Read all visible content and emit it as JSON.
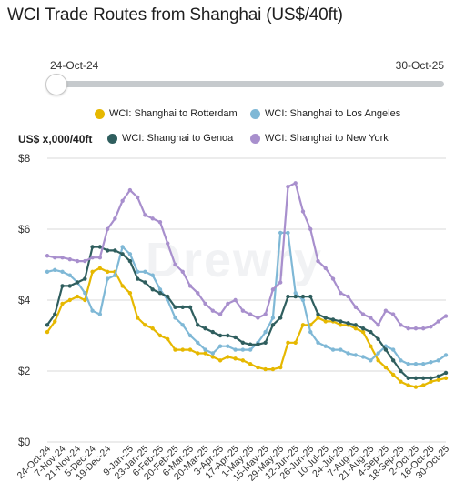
{
  "title": "WCI Trade Routes from Shanghai (US$/40ft)",
  "slider": {
    "start_label": "24-Oct-24",
    "end_label": "30-Oct-25"
  },
  "watermark": "Drewry",
  "chart_data": {
    "type": "line",
    "ylabel": "US$ x,000/40ft",
    "ylim": [
      0,
      8
    ],
    "yticks": [
      0,
      2,
      4,
      6,
      8
    ],
    "ytick_labels": [
      "$0",
      "$2",
      "$4",
      "$6",
      "$8"
    ],
    "grid": true,
    "legend_position": "top",
    "x": [
      "24-Oct-24",
      "31-Oct-24",
      "7-Nov-24",
      "14-Nov-24",
      "21-Nov-24",
      "28-Nov-24",
      "5-Dec-24",
      "12-Dec-24",
      "19-Dec-24",
      "26-Dec-24",
      "2-Jan-25",
      "9-Jan-25",
      "16-Jan-25",
      "23-Jan-25",
      "30-Jan-25",
      "6-Feb-25",
      "13-Feb-25",
      "20-Feb-25",
      "27-Feb-25",
      "6-Mar-25",
      "13-Mar-25",
      "20-Mar-25",
      "27-Mar-25",
      "3-Apr-25",
      "10-Apr-25",
      "17-Apr-25",
      "24-Apr-25",
      "1-May-25",
      "8-May-25",
      "15-May-25",
      "22-May-25",
      "29-May-25",
      "5-Jun-25",
      "12-Jun-25",
      "19-Jun-25",
      "26-Jun-25",
      "3-Jul-25",
      "10-Jul-25",
      "17-Jul-25",
      "24-Jul-25",
      "31-Jul-25",
      "7-Aug-25",
      "14-Aug-25",
      "21-Aug-25",
      "28-Aug-25",
      "4-Sep-25",
      "11-Sep-25",
      "18-Sep-25",
      "25-Sep-25",
      "2-Oct-25",
      "9-Oct-25",
      "16-Oct-25",
      "23-Oct-25",
      "30-Oct-25"
    ],
    "xtick_labels": [
      "24-Oct-24",
      "7-Nov-24",
      "21-Nov-24",
      "5-Dec-24",
      "19-Dec-24",
      "9-Jan-25",
      "23-Jan-25",
      "6-Feb-25",
      "20-Feb-25",
      "6-Mar-25",
      "20-Mar-25",
      "3-Apr-25",
      "17-Apr-25",
      "1-May-25",
      "15-May-25",
      "29-May-25",
      "12-Jun-25",
      "26-Jun-25",
      "10-Jul-25",
      "24-Jul-25",
      "7-Aug-25",
      "21-Aug-25",
      "4-Sep-25",
      "18-Sep-25",
      "2-Oct-25",
      "16-Oct-25",
      "30-Oct-25"
    ],
    "series": [
      {
        "name": "WCI: Shanghai to Rotterdam",
        "color": "#e6b800",
        "values": [
          3.1,
          3.4,
          3.9,
          4.0,
          4.1,
          4.0,
          4.8,
          4.9,
          4.8,
          4.8,
          4.4,
          4.2,
          3.5,
          3.3,
          3.2,
          3.0,
          2.9,
          2.6,
          2.6,
          2.6,
          2.5,
          2.5,
          2.4,
          2.3,
          2.4,
          2.35,
          2.3,
          2.2,
          2.1,
          2.05,
          2.05,
          2.1,
          2.8,
          2.8,
          3.3,
          3.3,
          3.5,
          3.4,
          3.4,
          3.3,
          3.3,
          3.2,
          3.1,
          2.7,
          2.3,
          2.1,
          1.9,
          1.7,
          1.6,
          1.55,
          1.6,
          1.7,
          1.75,
          1.8
        ]
      },
      {
        "name": "WCI: Shanghai to Los Angeles",
        "color": "#7fb8d6",
        "values": [
          4.8,
          4.85,
          4.8,
          4.7,
          4.5,
          4.2,
          3.7,
          3.6,
          4.6,
          4.7,
          5.5,
          5.3,
          4.8,
          4.8,
          4.7,
          4.3,
          4.0,
          3.5,
          3.3,
          3.0,
          2.8,
          2.6,
          2.5,
          2.7,
          2.7,
          2.6,
          2.6,
          2.6,
          2.8,
          3.1,
          3.5,
          5.9,
          5.9,
          4.2,
          4.0,
          3.1,
          2.8,
          2.7,
          2.6,
          2.6,
          2.5,
          2.45,
          2.4,
          2.3,
          2.5,
          2.7,
          2.6,
          2.3,
          2.2,
          2.2,
          2.2,
          2.25,
          2.3,
          2.45
        ]
      },
      {
        "name": "WCI: Shanghai to Genoa",
        "color": "#2f5e5e",
        "values": [
          3.3,
          3.6,
          4.4,
          4.4,
          4.5,
          4.6,
          5.5,
          5.5,
          5.4,
          5.4,
          5.3,
          5.1,
          4.6,
          4.5,
          4.3,
          4.2,
          4.1,
          3.8,
          3.8,
          3.8,
          3.3,
          3.2,
          3.1,
          3.0,
          3.0,
          2.95,
          2.8,
          2.75,
          2.75,
          2.8,
          3.3,
          3.5,
          4.1,
          4.1,
          4.1,
          4.1,
          3.6,
          3.5,
          3.45,
          3.4,
          3.35,
          3.3,
          3.2,
          3.1,
          2.9,
          2.6,
          2.3,
          2.0,
          1.8,
          1.8,
          1.8,
          1.8,
          1.85,
          1.95
        ]
      },
      {
        "name": "WCI: Shanghai to New York",
        "color": "#a88fcd",
        "values": [
          5.25,
          5.2,
          5.2,
          5.15,
          5.1,
          5.1,
          5.2,
          5.2,
          6.0,
          6.3,
          6.8,
          7.1,
          6.9,
          6.4,
          6.3,
          6.2,
          5.6,
          5.0,
          4.8,
          4.4,
          4.2,
          3.9,
          3.7,
          3.6,
          3.9,
          4.0,
          3.7,
          3.6,
          3.5,
          3.6,
          4.3,
          4.5,
          7.2,
          7.3,
          6.5,
          6.0,
          5.1,
          4.9,
          4.6,
          4.2,
          4.1,
          3.8,
          3.6,
          3.5,
          3.3,
          3.7,
          3.6,
          3.3,
          3.2,
          3.2,
          3.2,
          3.25,
          3.4,
          3.55
        ]
      }
    ]
  }
}
